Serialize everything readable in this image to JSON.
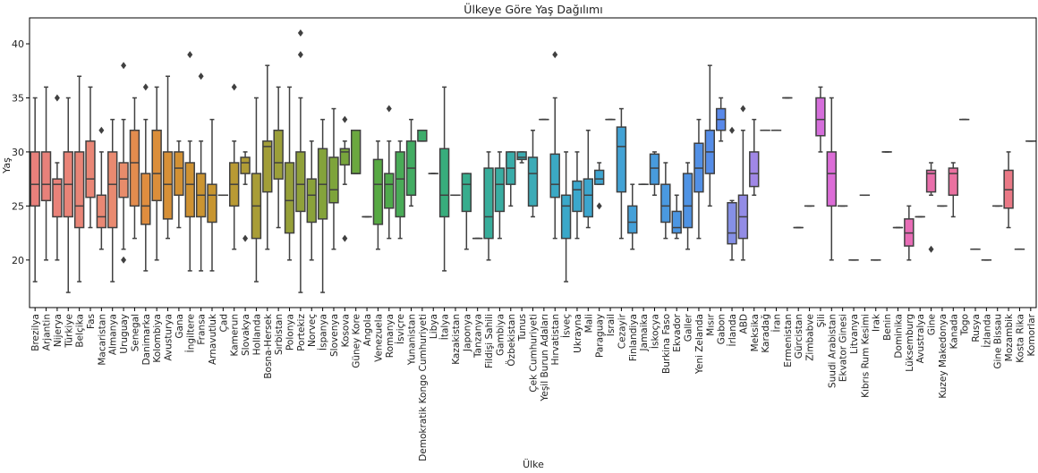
{
  "chart_data": {
    "type": "box",
    "title": "Ülkeye Göre Yaş Dağılımı",
    "xlabel": "Ülke",
    "ylabel": "Yaş",
    "ylim": [
      15.6,
      42.4
    ],
    "yticks": [
      20,
      25,
      30,
      35,
      40
    ],
    "grid": false,
    "legend": "none",
    "categories": [
      {
        "name": "Brezilya",
        "color": "#e8807b",
        "whislo": 18,
        "q1": 25,
        "med": 27,
        "q3": 30,
        "whishi": 35,
        "fliers": []
      },
      {
        "name": "Arjantin",
        "color": "#e8817a",
        "whislo": 20,
        "q1": 25.5,
        "med": 27,
        "q3": 30,
        "whishi": 36,
        "fliers": []
      },
      {
        "name": "Nijerya",
        "color": "#e98279",
        "whislo": 20,
        "q1": 24,
        "med": 27,
        "q3": 27.5,
        "whishi": 29,
        "fliers": [
          35
        ]
      },
      {
        "name": "Türkiye",
        "color": "#e98478",
        "whislo": 17,
        "q1": 24,
        "med": 27,
        "q3": 30,
        "whishi": 35,
        "fliers": []
      },
      {
        "name": "Belçika",
        "color": "#e98577",
        "whislo": 18,
        "q1": 23,
        "med": 25,
        "q3": 30,
        "whishi": 37,
        "fliers": []
      },
      {
        "name": "Fas",
        "color": "#e98676",
        "whislo": 23,
        "q1": 25.8,
        "med": 27.5,
        "q3": 31,
        "whishi": 36,
        "fliers": []
      },
      {
        "name": "Macaristan",
        "color": "#e98874",
        "whislo": 21,
        "q1": 23,
        "med": 24,
        "q3": 26,
        "whishi": 30,
        "fliers": [
          32
        ]
      },
      {
        "name": "Almanya",
        "color": "#e98a70",
        "whislo": 18,
        "q1": 23,
        "med": 27,
        "q3": 30,
        "whishi": 33,
        "fliers": []
      },
      {
        "name": "Uruguay",
        "color": "#e88c6b",
        "whislo": 21,
        "q1": 25.8,
        "med": 27.5,
        "q3": 29,
        "whishi": 33,
        "fliers": [
          20,
          38
        ]
      },
      {
        "name": "Senegal",
        "color": "#e38c4e",
        "whislo": 22,
        "q1": 25,
        "med": 29,
        "q3": 32,
        "whishi": 35,
        "fliers": []
      },
      {
        "name": "Danimarka",
        "color": "#df8d3f",
        "whislo": 19,
        "q1": 23.3,
        "med": 25,
        "q3": 28,
        "whishi": 33,
        "fliers": [
          36
        ]
      },
      {
        "name": "Kolombiya",
        "color": "#db8e3a",
        "whislo": 20,
        "q1": 25.5,
        "med": 28,
        "q3": 32,
        "whishi": 36,
        "fliers": []
      },
      {
        "name": "Avusturya",
        "color": "#d79037",
        "whislo": 22,
        "q1": 23.8,
        "med": 27,
        "q3": 30,
        "whishi": 37,
        "fliers": []
      },
      {
        "name": "Gana",
        "color": "#d39134",
        "whislo": 23,
        "q1": 26,
        "med": 28.5,
        "q3": 30,
        "whishi": 31,
        "fliers": []
      },
      {
        "name": "İngiltere",
        "color": "#cf9232",
        "whislo": 19,
        "q1": 24,
        "med": 27,
        "q3": 29,
        "whishi": 31,
        "fliers": [
          39
        ]
      },
      {
        "name": "Fransa",
        "color": "#cb9431",
        "whislo": 19,
        "q1": 24,
        "med": 26,
        "q3": 28,
        "whishi": 31,
        "fliers": [
          37
        ]
      },
      {
        "name": "Arnavutluk",
        "color": "#c79530",
        "whislo": 19,
        "q1": 23.5,
        "med": 26,
        "q3": 27,
        "whishi": 33,
        "fliers": []
      },
      {
        "name": "Çad",
        "color": "#c3962f",
        "whislo": 26,
        "q1": 26,
        "med": 26,
        "q3": 26,
        "whishi": 26,
        "fliers": []
      },
      {
        "name": "Kamerun",
        "color": "#b99a34",
        "whislo": 21,
        "q1": 25,
        "med": 27,
        "q3": 29,
        "whishi": 31,
        "fliers": [
          36
        ]
      },
      {
        "name": "Slovakya",
        "color": "#b09c36",
        "whislo": 27,
        "q1": 28,
        "med": 29,
        "q3": 29.5,
        "whishi": 30,
        "fliers": [
          22
        ]
      },
      {
        "name": "Hollanda",
        "color": "#a99d37",
        "whislo": 18,
        "q1": 22,
        "med": 25,
        "q3": 28,
        "whishi": 35,
        "fliers": []
      },
      {
        "name": "Bosna-Hersek",
        "color": "#a29e38",
        "whislo": 21,
        "q1": 26.3,
        "med": 30.5,
        "q3": 31,
        "whishi": 38,
        "fliers": []
      },
      {
        "name": "Sırbistan",
        "color": "#9c9f39",
        "whislo": 23,
        "q1": 27.5,
        "med": 29,
        "q3": 32,
        "whishi": 36,
        "fliers": []
      },
      {
        "name": "Polonya",
        "color": "#96a039",
        "whislo": 20,
        "q1": 22.5,
        "med": 25.5,
        "q3": 29,
        "whishi": 36,
        "fliers": []
      },
      {
        "name": "Portekiz",
        "color": "#90a13a",
        "whislo": 17,
        "q1": 24.5,
        "med": 27,
        "q3": 30,
        "whishi": 35,
        "fliers": [
          39,
          41
        ]
      },
      {
        "name": "Norveç",
        "color": "#8aa23a",
        "whislo": 20,
        "q1": 23.5,
        "med": 26,
        "q3": 27.5,
        "whishi": 31,
        "fliers": []
      },
      {
        "name": "İspanya",
        "color": "#84a33b",
        "whislo": 17,
        "q1": 23.8,
        "med": 27,
        "q3": 30.3,
        "whishi": 33,
        "fliers": []
      },
      {
        "name": "Slovenya",
        "color": "#7ea43b",
        "whislo": 21,
        "q1": 25.3,
        "med": 26.5,
        "q3": 29.5,
        "whishi": 34,
        "fliers": []
      },
      {
        "name": "Kosova",
        "color": "#78a53c",
        "whislo": 27,
        "q1": 28.8,
        "med": 30,
        "q3": 30.3,
        "whishi": 31,
        "fliers": [
          22,
          33
        ]
      },
      {
        "name": "Güney Kore",
        "color": "#6ba83f",
        "whislo": 28,
        "q1": 28,
        "med": 28,
        "q3": 32,
        "whishi": 32,
        "fliers": []
      },
      {
        "name": "Angola",
        "color": "#60a940",
        "whislo": 24,
        "q1": 24,
        "med": 24,
        "q3": 24,
        "whishi": 24,
        "fliers": []
      },
      {
        "name": "Venezuela",
        "color": "#57a943",
        "whislo": 21,
        "q1": 23.3,
        "med": 27,
        "q3": 29.3,
        "whishi": 31,
        "fliers": []
      },
      {
        "name": "Romanya",
        "color": "#50aa4c",
        "whislo": 22,
        "q1": 24.8,
        "med": 27,
        "q3": 28,
        "whishi": 31,
        "fliers": [
          34
        ]
      },
      {
        "name": "İsviçre",
        "color": "#49ab57",
        "whislo": 22,
        "q1": 24,
        "med": 27.5,
        "q3": 30,
        "whishi": 31,
        "fliers": []
      },
      {
        "name": "Yunanistan",
        "color": "#42ac62",
        "whislo": 25,
        "q1": 26,
        "med": 28.5,
        "q3": 31,
        "whishi": 33,
        "fliers": []
      },
      {
        "name": "Demokratik Kongo Cumhuriyeti",
        "color": "#3dac6b",
        "whislo": 31,
        "q1": 31,
        "med": 31,
        "q3": 32,
        "whishi": 32,
        "fliers": []
      },
      {
        "name": "Libya",
        "color": "#3aad73",
        "whislo": 28,
        "q1": 28,
        "med": 28,
        "q3": 28,
        "whishi": 28,
        "fliers": []
      },
      {
        "name": "İtalya",
        "color": "#38ad7c",
        "whislo": 19,
        "q1": 24,
        "med": 26,
        "q3": 30.3,
        "whishi": 36,
        "fliers": []
      },
      {
        "name": "Kazakistan",
        "color": "#37ad84",
        "whislo": 26,
        "q1": 26,
        "med": 26,
        "q3": 26,
        "whishi": 26,
        "fliers": []
      },
      {
        "name": "Japonya",
        "color": "#37ad8d",
        "whislo": 21,
        "q1": 24.5,
        "med": 27,
        "q3": 28,
        "whishi": 28,
        "fliers": []
      },
      {
        "name": "Tanzanya",
        "color": "#37ad94",
        "whislo": 22,
        "q1": 22,
        "med": 22,
        "q3": 22,
        "whishi": 22,
        "fliers": []
      },
      {
        "name": "Fildişi Sahili",
        "color": "#38ad9b",
        "whislo": 20,
        "q1": 22,
        "med": 24,
        "q3": 28.5,
        "whishi": 30,
        "fliers": []
      },
      {
        "name": "Gambiya",
        "color": "#39ada2",
        "whislo": 22,
        "q1": 24.5,
        "med": 27,
        "q3": 28.5,
        "whishi": 30,
        "fliers": []
      },
      {
        "name": "Özbekistan",
        "color": "#3aaca9",
        "whislo": 25,
        "q1": 27,
        "med": 28.5,
        "q3": 30,
        "whishi": 30,
        "fliers": []
      },
      {
        "name": "Tunus",
        "color": "#3babb0",
        "whislo": 29,
        "q1": 29.3,
        "med": 29.5,
        "q3": 30,
        "whishi": 30,
        "fliers": []
      },
      {
        "name": "Çek Cumhuriyeti",
        "color": "#3cabb7",
        "whislo": 24,
        "q1": 25,
        "med": 28,
        "q3": 29.5,
        "whishi": 32,
        "fliers": []
      },
      {
        "name": "Yeşil Burun Adaları",
        "color": "#3caabd",
        "whislo": 33,
        "q1": 33,
        "med": 33,
        "q3": 33,
        "whishi": 33,
        "fliers": []
      },
      {
        "name": "Hırvatistan",
        "color": "#3ba9c4",
        "whislo": 22,
        "q1": 25.8,
        "med": 27,
        "q3": 29.8,
        "whishi": 35,
        "fliers": [
          39
        ]
      },
      {
        "name": "İsveç",
        "color": "#3aa8c9",
        "whislo": 18,
        "q1": 22,
        "med": 25,
        "q3": 26,
        "whishi": 30,
        "fliers": []
      },
      {
        "name": "Ukrayna",
        "color": "#3ba7cc",
        "whislo": 22,
        "q1": 24.5,
        "med": 26.5,
        "q3": 27.3,
        "whishi": 30,
        "fliers": []
      },
      {
        "name": "Mali",
        "color": "#3ca6ce",
        "whislo": 23,
        "q1": 24,
        "med": 26,
        "q3": 27.5,
        "whishi": 32,
        "fliers": []
      },
      {
        "name": "Paraguay",
        "color": "#3ea5d1",
        "whislo": 27,
        "q1": 27,
        "med": 27.5,
        "q3": 28.3,
        "whishi": 29,
        "fliers": [
          25
        ]
      },
      {
        "name": "İsrail",
        "color": "#40a4d3",
        "whislo": 33,
        "q1": 33,
        "med": 33,
        "q3": 33,
        "whishi": 33,
        "fliers": []
      },
      {
        "name": "Cezayir",
        "color": "#42a2d5",
        "whislo": 22,
        "q1": 26.3,
        "med": 30.5,
        "q3": 32.3,
        "whishi": 34,
        "fliers": []
      },
      {
        "name": "Finlandiya",
        "color": "#44a0d8",
        "whislo": 21,
        "q1": 22.5,
        "med": 23.5,
        "q3": 25,
        "whishi": 27,
        "fliers": []
      },
      {
        "name": "Jamaika",
        "color": "#469edb",
        "whislo": 27,
        "q1": 27,
        "med": 27,
        "q3": 27,
        "whishi": 27,
        "fliers": []
      },
      {
        "name": "İskoçya",
        "color": "#489bdd",
        "whislo": 26,
        "q1": 27,
        "med": 28.5,
        "q3": 29.8,
        "whishi": 30,
        "fliers": []
      },
      {
        "name": "Burkina Faso",
        "color": "#4a99e0",
        "whislo": 22,
        "q1": 23.5,
        "med": 25,
        "q3": 27,
        "whishi": 29,
        "fliers": []
      },
      {
        "name": "Ekvador",
        "color": "#4c96e2",
        "whislo": 22,
        "q1": 22.5,
        "med": 23,
        "q3": 24.5,
        "whishi": 26,
        "fliers": []
      },
      {
        "name": "Galler",
        "color": "#4f93e4",
        "whislo": 21,
        "q1": 23,
        "med": 25,
        "q3": 28,
        "whishi": 29,
        "fliers": []
      },
      {
        "name": "Yeni Zelanda",
        "color": "#5290e6",
        "whislo": 22,
        "q1": 26.3,
        "med": 28.5,
        "q3": 30.8,
        "whishi": 33,
        "fliers": []
      },
      {
        "name": "Mısır",
        "color": "#558de8",
        "whislo": 25,
        "q1": 28,
        "med": 30,
        "q3": 32,
        "whishi": 38,
        "fliers": []
      },
      {
        "name": "Gabon",
        "color": "#5989ea",
        "whislo": 31,
        "q1": 32,
        "med": 33,
        "q3": 34,
        "whishi": 35,
        "fliers": []
      },
      {
        "name": "İrlanda",
        "color": "#8590e6",
        "whislo": 20,
        "q1": 21.5,
        "med": 22.5,
        "q3": 25.3,
        "whishi": 25.5,
        "fliers": [
          32
        ]
      },
      {
        "name": "ABD",
        "color": "#938ce6",
        "whislo": 20,
        "q1": 22,
        "med": 24,
        "q3": 26,
        "whishi": 32,
        "fliers": [
          34
        ]
      },
      {
        "name": "Meksika",
        "color": "#a087e6",
        "whislo": 26,
        "q1": 26.8,
        "med": 28,
        "q3": 30,
        "whishi": 33,
        "fliers": []
      },
      {
        "name": "Karadağ",
        "color": "#ab82e5",
        "whislo": 32,
        "q1": 32,
        "med": 32,
        "q3": 32,
        "whishi": 32,
        "fliers": []
      },
      {
        "name": "İran",
        "color": "#b57ee4",
        "whislo": 32,
        "q1": 32,
        "med": 32,
        "q3": 32,
        "whishi": 32,
        "fliers": []
      },
      {
        "name": "Ermenistan",
        "color": "#be79e2",
        "whislo": 35,
        "q1": 35,
        "med": 35,
        "q3": 35,
        "whishi": 35,
        "fliers": []
      },
      {
        "name": "Gürcistan",
        "color": "#c675e0",
        "whislo": 23,
        "q1": 23,
        "med": 23,
        "q3": 23,
        "whishi": 23,
        "fliers": []
      },
      {
        "name": "Zimbabve",
        "color": "#ce71dd",
        "whislo": 25,
        "q1": 25,
        "med": 25,
        "q3": 25,
        "whishi": 25,
        "fliers": []
      },
      {
        "name": "Şili",
        "color": "#d56edb",
        "whislo": 30,
        "q1": 31.5,
        "med": 33,
        "q3": 35,
        "whishi": 36,
        "fliers": []
      },
      {
        "name": "Suudi Arabistan",
        "color": "#dc6cd7",
        "whislo": 20,
        "q1": 25,
        "med": 28,
        "q3": 30,
        "whishi": 35,
        "fliers": []
      },
      {
        "name": "Ekvator Ginesi",
        "color": "#e06bd3",
        "whislo": 25,
        "q1": 25,
        "med": 25,
        "q3": 25,
        "whishi": 25,
        "fliers": []
      },
      {
        "name": "Litvanya",
        "color": "#e26bcf",
        "whislo": 20,
        "q1": 20,
        "med": 20,
        "q3": 20,
        "whishi": 20,
        "fliers": []
      },
      {
        "name": "Kıbrıs Rum Kesimi",
        "color": "#e46bca",
        "whislo": 26,
        "q1": 26,
        "med": 26,
        "q3": 26,
        "whishi": 26,
        "fliers": []
      },
      {
        "name": "Irak",
        "color": "#e56bc5",
        "whislo": 20,
        "q1": 20,
        "med": 20,
        "q3": 20,
        "whishi": 20,
        "fliers": []
      },
      {
        "name": "Benin",
        "color": "#e66cc0",
        "whislo": 30,
        "q1": 30,
        "med": 30,
        "q3": 30,
        "whishi": 30,
        "fliers": []
      },
      {
        "name": "Dominika",
        "color": "#e76cbb",
        "whislo": 23,
        "q1": 23,
        "med": 23,
        "q3": 23,
        "whishi": 23,
        "fliers": []
      },
      {
        "name": "Lüksemburg",
        "color": "#e86db6",
        "whislo": 20,
        "q1": 21.3,
        "med": 22.5,
        "q3": 23.8,
        "whishi": 25,
        "fliers": []
      },
      {
        "name": "Avustralya",
        "color": "#e86eb1",
        "whislo": 24,
        "q1": 24,
        "med": 24,
        "q3": 24,
        "whishi": 24,
        "fliers": []
      },
      {
        "name": "Gine",
        "color": "#e96fab",
        "whislo": 26,
        "q1": 26.3,
        "med": 28,
        "q3": 28.3,
        "whishi": 29,
        "fliers": [
          21
        ]
      },
      {
        "name": "Kuzey Makedonya",
        "color": "#e970a6",
        "whislo": 25,
        "q1": 25,
        "med": 25,
        "q3": 25,
        "whishi": 25,
        "fliers": []
      },
      {
        "name": "Kanada",
        "color": "#ea71a0",
        "whislo": 24,
        "q1": 26,
        "med": 28,
        "q3": 28.5,
        "whishi": 29,
        "fliers": []
      },
      {
        "name": "Togo",
        "color": "#ea739b",
        "whislo": 33,
        "q1": 33,
        "med": 33,
        "q3": 33,
        "whishi": 33,
        "fliers": []
      },
      {
        "name": "Rusya",
        "color": "#ea7495",
        "whislo": 21,
        "q1": 21,
        "med": 21,
        "q3": 21,
        "whishi": 21,
        "fliers": []
      },
      {
        "name": "İzlanda",
        "color": "#ea7690",
        "whislo": 20,
        "q1": 20,
        "med": 20,
        "q3": 20,
        "whishi": 20,
        "fliers": []
      },
      {
        "name": "Gine Bissau",
        "color": "#ea778b",
        "whislo": 25,
        "q1": 25,
        "med": 25,
        "q3": 25,
        "whishi": 25,
        "fliers": []
      },
      {
        "name": "Mozambik",
        "color": "#ea7986",
        "whislo": 23,
        "q1": 24.8,
        "med": 26.5,
        "q3": 28.3,
        "whishi": 30,
        "fliers": []
      },
      {
        "name": "Kosta Rika",
        "color": "#ea7b82",
        "whislo": 21,
        "q1": 21,
        "med": 21,
        "q3": 21,
        "whishi": 21,
        "fliers": []
      },
      {
        "name": "Komorlar",
        "color": "#e97c7e",
        "whislo": 31,
        "q1": 31,
        "med": 31,
        "q3": 31,
        "whishi": 31,
        "fliers": []
      }
    ]
  }
}
